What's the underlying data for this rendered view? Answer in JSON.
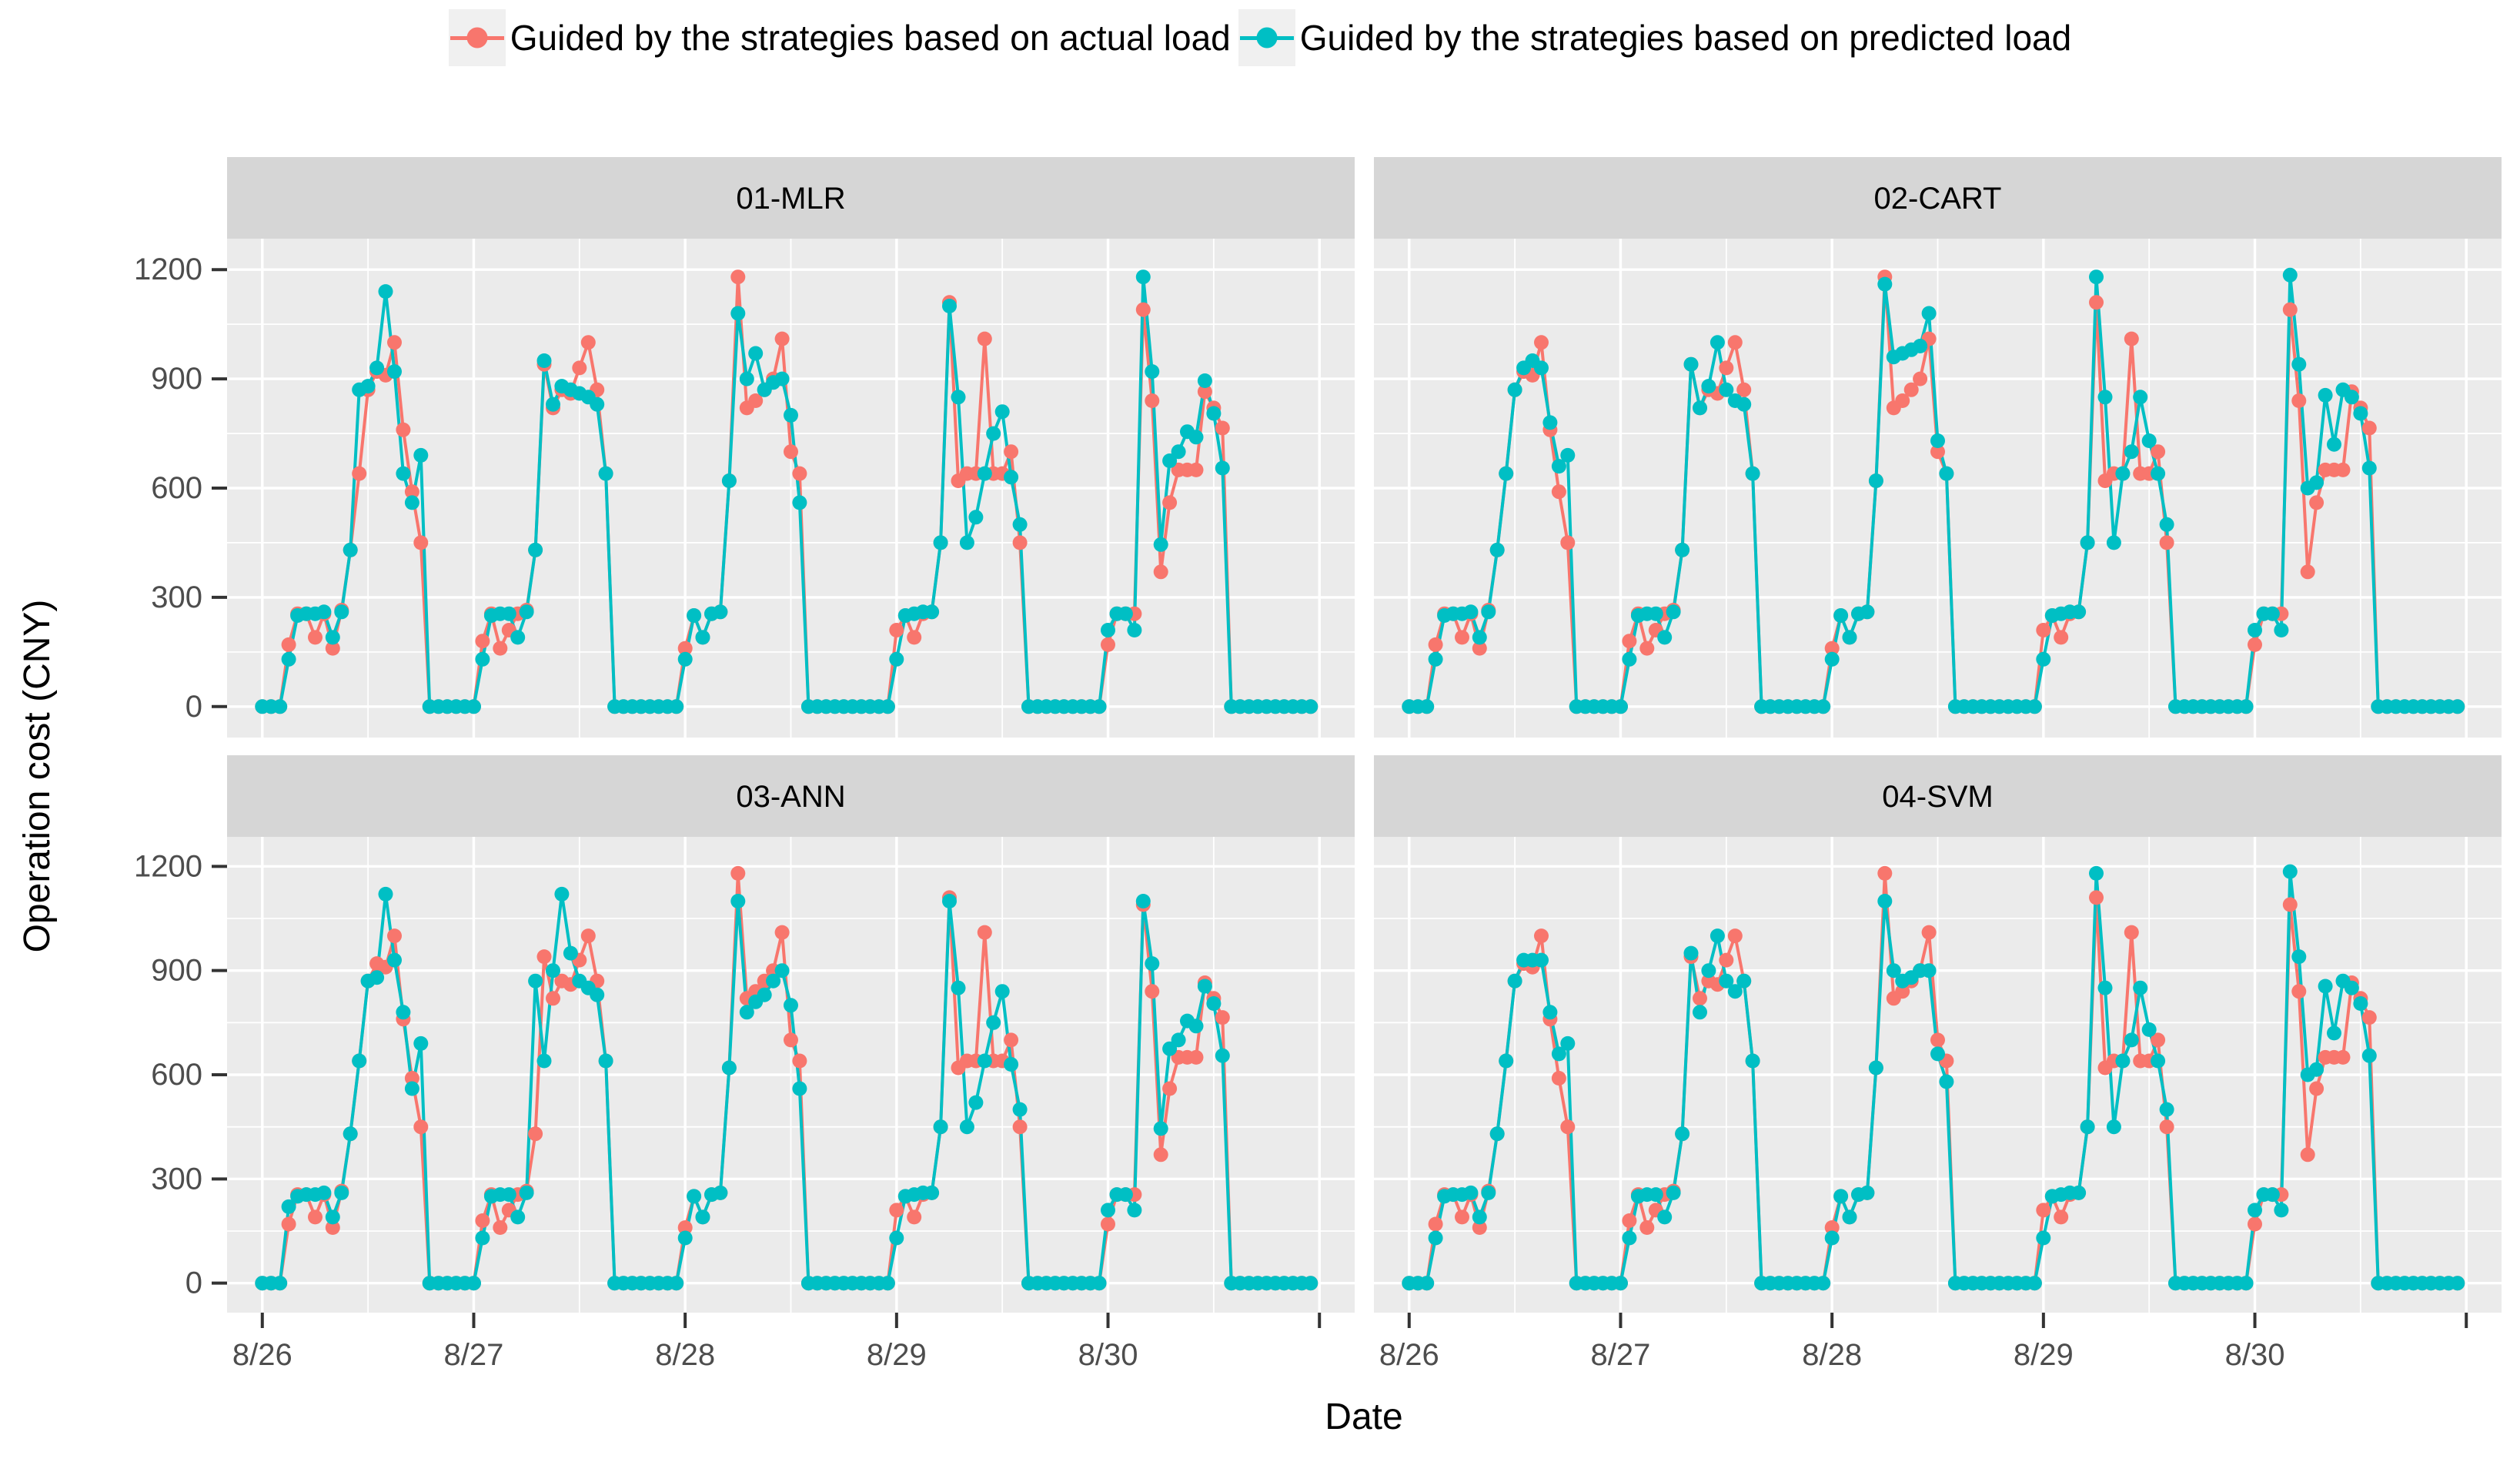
{
  "legend": {
    "position": "top",
    "items": [
      {
        "id": "actual",
        "label": "Guided by the strategies based on actual load",
        "color": "#F8766D"
      },
      {
        "id": "predicted",
        "label": "Guided by the strategies based on predicted load",
        "color": "#00BFC4"
      }
    ]
  },
  "chart_data": {
    "type": "line",
    "title": "",
    "xlabel": "Date",
    "ylabel": "Operation cost (CNY)",
    "facet_labels": [
      "01-MLR",
      "02-CART",
      "03-ANN",
      "04-SVM"
    ],
    "x_unit_hours_per_day": 24,
    "x_tick_hours": [
      0,
      24,
      48,
      72,
      96,
      120
    ],
    "x_tick_labels": [
      "8/26",
      "8/27",
      "8/28",
      "8/29",
      "8/30",
      ""
    ],
    "y_ticks": [
      0,
      300,
      600,
      900,
      1200
    ],
    "y_minor_ticks": [
      150,
      450,
      750,
      1050
    ],
    "ylim": [
      0,
      1200
    ],
    "grid": "white major and minor gridlines on gray panel",
    "legend_position": "top",
    "colors": {
      "actual": "#F8766D",
      "predicted": "#00BFC4",
      "panel_bg": "#EBEBEB",
      "strip_bg": "#D6D6D6",
      "grid": "#FFFFFF",
      "tick_text": "#4D4D4D",
      "axis_title_text": "#000000",
      "tick_mark": "#333333"
    },
    "series": [
      {
        "name": "Guided by the strategies based on actual load",
        "color": "#F8766D",
        "applies_to_facets": "all",
        "values_by_day": [
          [
            0,
            0,
            0,
            170,
            255,
            255,
            190,
            255,
            160,
            265,
            430,
            640,
            870,
            920,
            910,
            1000,
            760,
            590,
            450,
            0,
            0,
            0,
            0,
            0
          ],
          [
            0,
            180,
            255,
            160,
            210,
            255,
            265,
            430,
            940,
            820,
            870,
            860,
            930,
            1000,
            870,
            640,
            0,
            0,
            0,
            0,
            0,
            0,
            0,
            0
          ],
          [
            160,
            250,
            190,
            255,
            260,
            620,
            1180,
            820,
            840,
            870,
            900,
            1010,
            700,
            640,
            0,
            0,
            0,
            0,
            0,
            0,
            0,
            0,
            0,
            0
          ],
          [
            210,
            250,
            190,
            255,
            260,
            450,
            1110,
            620,
            640,
            640,
            1010,
            640,
            640,
            700,
            450,
            0,
            0,
            0,
            0,
            0,
            0,
            0,
            0,
            0
          ],
          [
            170,
            255,
            255,
            255,
            1090,
            840,
            370,
            560,
            650,
            650,
            650,
            865,
            820,
            765,
            0,
            0,
            0,
            0,
            0,
            0,
            0,
            0,
            0,
            0
          ]
        ]
      },
      {
        "name": "Guided by the strategies based on predicted load",
        "color": "#00BFC4",
        "values_by_day_per_facet": {
          "01-MLR": [
            [
              0,
              0,
              0,
              130,
              250,
              255,
              255,
              260,
              190,
              260,
              430,
              870,
              880,
              930,
              1140,
              920,
              640,
              560,
              690,
              0,
              0,
              0,
              0,
              0
            ],
            [
              0,
              130,
              250,
              255,
              255,
              190,
              260,
              430,
              950,
              830,
              880,
              870,
              860,
              850,
              830,
              640,
              0,
              0,
              0,
              0,
              0,
              0,
              0,
              0
            ],
            [
              130,
              250,
              190,
              255,
              260,
              620,
              1080,
              900,
              970,
              870,
              890,
              900,
              800,
              560,
              0,
              0,
              0,
              0,
              0,
              0,
              0,
              0,
              0,
              0
            ],
            [
              130,
              250,
              255,
              260,
              260,
              450,
              1100,
              850,
              450,
              520,
              640,
              750,
              810,
              630,
              500,
              0,
              0,
              0,
              0,
              0,
              0,
              0,
              0,
              0
            ],
            [
              210,
              255,
              255,
              210,
              1180,
              920,
              445,
              675,
              700,
              755,
              740,
              895,
              805,
              655,
              0,
              0,
              0,
              0,
              0,
              0,
              0,
              0,
              0,
              0
            ]
          ],
          "02-CART": [
            [
              0,
              0,
              0,
              130,
              250,
              255,
              255,
              260,
              190,
              260,
              430,
              640,
              870,
              930,
              950,
              930,
              780,
              660,
              690,
              0,
              0,
              0,
              0,
              0
            ],
            [
              0,
              130,
              250,
              255,
              255,
              190,
              260,
              430,
              940,
              820,
              880,
              1000,
              870,
              840,
              830,
              640,
              0,
              0,
              0,
              0,
              0,
              0,
              0,
              0
            ],
            [
              130,
              250,
              190,
              255,
              260,
              620,
              1160,
              960,
              970,
              980,
              990,
              1080,
              730,
              640,
              0,
              0,
              0,
              0,
              0,
              0,
              0,
              0,
              0,
              0
            ],
            [
              130,
              250,
              255,
              260,
              260,
              450,
              1180,
              850,
              450,
              640,
              700,
              850,
              730,
              640,
              500,
              0,
              0,
              0,
              0,
              0,
              0,
              0,
              0,
              0
            ],
            [
              210,
              255,
              255,
              210,
              1185,
              940,
              600,
              615,
              855,
              720,
              870,
              850,
              805,
              655,
              0,
              0,
              0,
              0,
              0,
              0,
              0,
              0,
              0,
              0
            ]
          ],
          "03-ANN": [
            [
              0,
              0,
              0,
              220,
              250,
              255,
              255,
              260,
              190,
              260,
              430,
              640,
              870,
              880,
              1120,
              930,
              780,
              560,
              690,
              0,
              0,
              0,
              0,
              0
            ],
            [
              0,
              130,
              250,
              255,
              255,
              190,
              260,
              870,
              640,
              900,
              1120,
              950,
              870,
              850,
              830,
              640,
              0,
              0,
              0,
              0,
              0,
              0,
              0,
              0
            ],
            [
              130,
              250,
              190,
              255,
              260,
              620,
              1100,
              780,
              810,
              830,
              870,
              900,
              800,
              560,
              0,
              0,
              0,
              0,
              0,
              0,
              0,
              0,
              0,
              0
            ],
            [
              130,
              250,
              255,
              260,
              260,
              450,
              1100,
              850,
              450,
              520,
              640,
              750,
              840,
              630,
              500,
              0,
              0,
              0,
              0,
              0,
              0,
              0,
              0,
              0
            ],
            [
              210,
              255,
              255,
              210,
              1100,
              920,
              445,
              675,
              700,
              755,
              740,
              855,
              805,
              655,
              0,
              0,
              0,
              0,
              0,
              0,
              0,
              0,
              0,
              0
            ]
          ],
          "04-SVM": [
            [
              0,
              0,
              0,
              130,
              250,
              255,
              255,
              260,
              190,
              260,
              430,
              640,
              870,
              930,
              930,
              930,
              780,
              660,
              690,
              0,
              0,
              0,
              0,
              0
            ],
            [
              0,
              130,
              250,
              255,
              255,
              190,
              260,
              430,
              950,
              780,
              900,
              1000,
              870,
              840,
              870,
              640,
              0,
              0,
              0,
              0,
              0,
              0,
              0,
              0
            ],
            [
              130,
              250,
              190,
              255,
              260,
              620,
              1100,
              900,
              870,
              880,
              900,
              900,
              660,
              580,
              0,
              0,
              0,
              0,
              0,
              0,
              0,
              0,
              0,
              0
            ],
            [
              130,
              250,
              255,
              260,
              260,
              450,
              1180,
              850,
              450,
              640,
              700,
              850,
              730,
              640,
              500,
              0,
              0,
              0,
              0,
              0,
              0,
              0,
              0,
              0
            ],
            [
              210,
              255,
              255,
              210,
              1185,
              940,
              600,
              615,
              855,
              720,
              870,
              850,
              805,
              655,
              0,
              0,
              0,
              0,
              0,
              0,
              0,
              0,
              0,
              0
            ]
          ]
        }
      }
    ]
  }
}
